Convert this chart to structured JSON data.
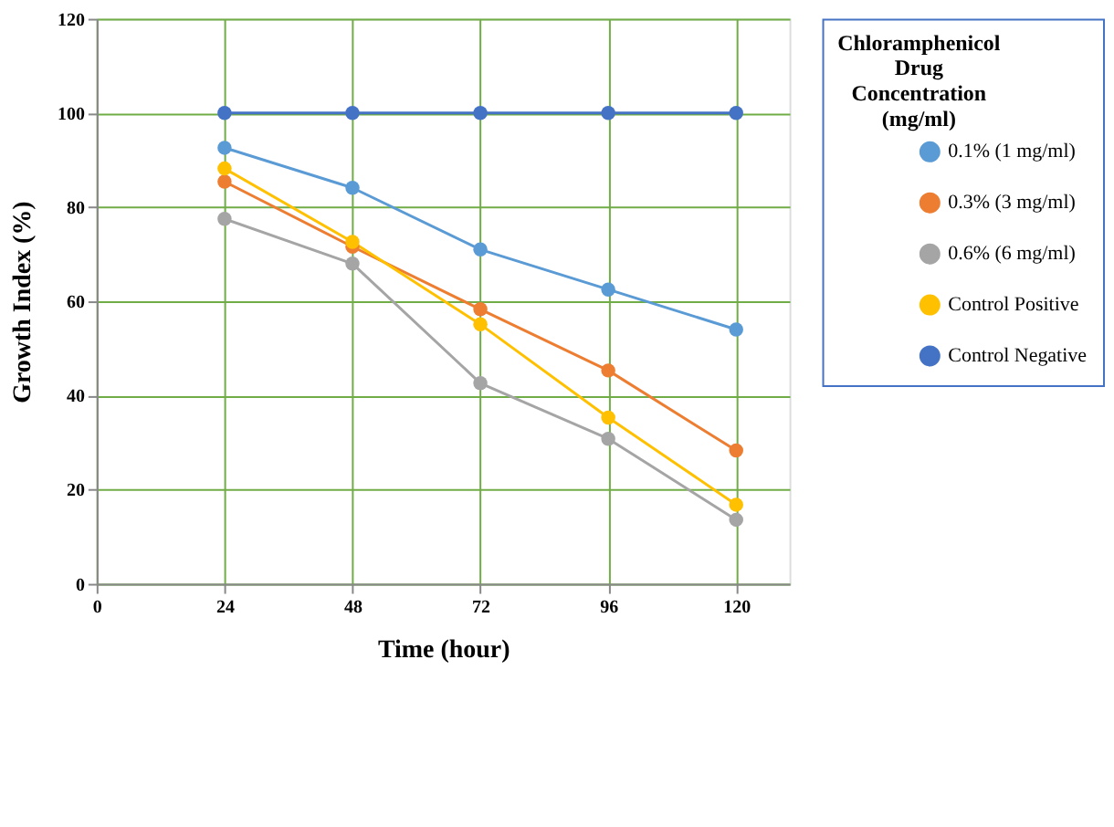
{
  "chart_data": {
    "type": "line",
    "xlabel": "Time (hour)",
    "ylabel": "Growth Index (%)",
    "legend_title": "Chloramphenicol Drug Concentration (mg/ml)",
    "x": [
      24,
      48,
      72,
      96,
      120
    ],
    "series": [
      {
        "name": "0.1% (1 mg/ml)",
        "color": "#5b9bd5",
        "values": [
          92.6,
          84.1,
          71,
          62.5,
          54
        ]
      },
      {
        "name": "0.3% (3 mg/ml)",
        "color": "#ed7d31",
        "values": [
          85.4,
          71.6,
          58.3,
          45.3,
          28.3
        ]
      },
      {
        "name": "0.6% (6 mg/ml)",
        "color": "#a5a5a5",
        "values": [
          77.5,
          68,
          42.6,
          30.8,
          13.6
        ]
      },
      {
        "name": "Control Positive",
        "color": "#ffc000",
        "values": [
          88.2,
          72.6,
          55.1,
          35.3,
          16.8
        ]
      },
      {
        "name": "Control Negative",
        "color": "#4472c4",
        "values": [
          100,
          100,
          100,
          100,
          100
        ]
      }
    ],
    "xlim": [
      0,
      130
    ],
    "xticks": [
      0,
      24,
      48,
      72,
      96,
      120
    ],
    "ylim": [
      0,
      120
    ],
    "yticks": [
      0,
      20,
      40,
      60,
      80,
      100,
      120
    ],
    "grid": true,
    "legend": "right",
    "marker": "circle",
    "line_style": "solid"
  }
}
